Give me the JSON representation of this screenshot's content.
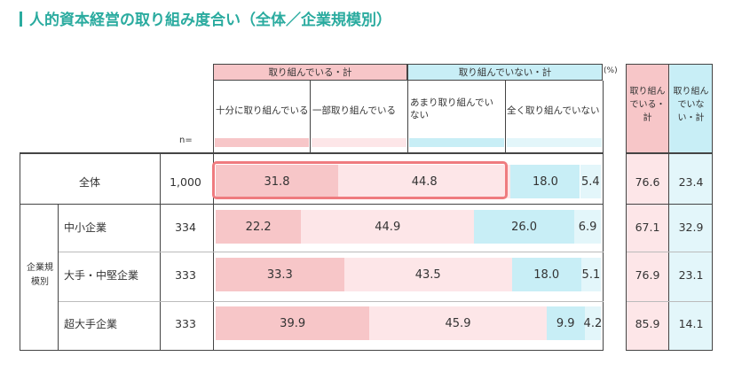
{
  "title": "人的資本経営の取り組み度合い（全体／企業規模別）",
  "header": {
    "group_yes": "取り組んでいる・計",
    "group_no": "取り組んでいない・計",
    "pct": "(%)",
    "n_label": "n=",
    "sum_yes": "取り組んでいる・計",
    "sum_no": "取り組んでいない・計",
    "sub": [
      "十分に取り組んでいる",
      "一部取り組んでいる",
      "あまり取り組んでいない",
      "全く取り組んでいない"
    ]
  },
  "side_label": "企業規模別",
  "colors": {
    "c1": "#f7c6c8",
    "c2": "#fde6e8",
    "c3": "#c8eef6",
    "c4": "#e3f6fa",
    "sum_yes": "#f7c6c8",
    "sum_no": "#c8eef6",
    "title": "#2aab9f",
    "highlight": "#ef7b7f"
  },
  "chart_data": {
    "type": "bar",
    "stacked": true,
    "orientation": "horizontal",
    "unit": "%",
    "categories": [
      "全体",
      "中小企業",
      "大手・中堅企業",
      "超大手企業"
    ],
    "n": [
      "1,000",
      "334",
      "333",
      "333"
    ],
    "series": [
      {
        "name": "十分に取り組んでいる",
        "values": [
          31.8,
          22.2,
          33.3,
          39.9
        ]
      },
      {
        "name": "一部取り組んでいる",
        "values": [
          44.8,
          44.9,
          43.5,
          45.9
        ]
      },
      {
        "name": "あまり取り組んでいない",
        "values": [
          18.0,
          26.0,
          18.0,
          9.9
        ]
      },
      {
        "name": "全く取り組んでいない",
        "values": [
          5.4,
          6.9,
          5.1,
          4.2
        ]
      }
    ],
    "totals": {
      "yes": [
        "76.6",
        "67.1",
        "76.9",
        "85.9"
      ],
      "no": [
        "23.4",
        "32.9",
        "23.1",
        "14.1"
      ]
    },
    "labels": [
      [
        "31.8",
        "44.8",
        "18.0",
        "5.4"
      ],
      [
        "22.2",
        "44.9",
        "26.0",
        "6.9"
      ],
      [
        "33.3",
        "43.5",
        "18.0",
        "5.1"
      ],
      [
        "39.9",
        "45.9",
        "9.9",
        "4.2"
      ]
    ]
  }
}
